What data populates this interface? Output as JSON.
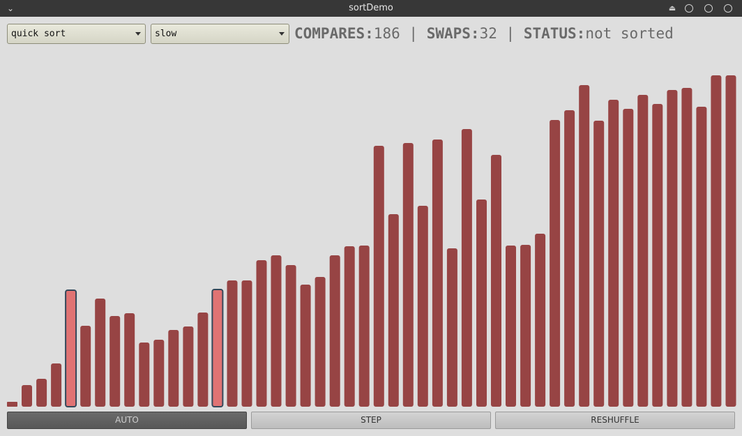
{
  "window": {
    "title": "sortDemo"
  },
  "controls": {
    "algorithm": "quick sort",
    "speed": "slow"
  },
  "stats": {
    "compares_label": "COMPARES:",
    "compares_value": "186",
    "swaps_label": "SWAPS:",
    "swaps_value": "32",
    "status_label": "STATUS:",
    "status_value": "not sorted",
    "separator": "|"
  },
  "buttons": {
    "auto": "AUTO",
    "step": "STEP",
    "reshuffle": "RESHUFFLE"
  },
  "colors": {
    "bar": "#974444",
    "bar_highlight": "#e07373",
    "highlight_border": "#33485a"
  },
  "chart_data": {
    "type": "bar",
    "values": [
      7,
      31,
      40,
      62,
      167,
      116,
      155,
      130,
      134,
      92,
      96,
      110,
      115,
      135,
      168,
      181,
      181,
      210,
      217,
      203,
      175,
      186,
      217,
      230,
      231,
      374,
      276,
      378,
      288,
      383,
      227,
      398,
      297,
      361,
      231,
      232,
      248,
      411,
      425,
      461,
      410,
      440,
      427,
      447,
      434,
      454,
      457,
      430,
      475,
      475
    ],
    "highlighted": [
      4,
      14
    ],
    "ylim": [
      0,
      520
    ]
  }
}
